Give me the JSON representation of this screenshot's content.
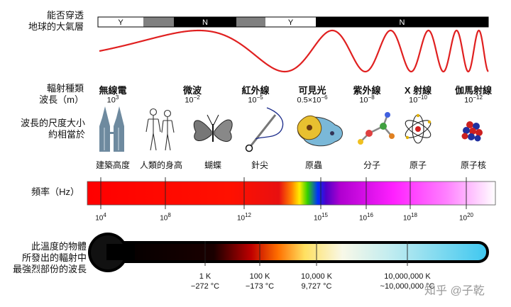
{
  "atmosphere": {
    "label": "能否穿透\n地球的大氣層",
    "segments": [
      {
        "text": "Y",
        "fill": "#ffffff",
        "color": "#000000"
      },
      {
        "text": "",
        "fill": "#808080",
        "color": "#000000"
      },
      {
        "text": "N",
        "fill": "#000000",
        "color": "#ffffff"
      },
      {
        "text": "",
        "fill": "#808080",
        "color": "#000000"
      },
      {
        "text": "Y",
        "fill": "#ffffff",
        "color": "#000000"
      },
      {
        "text": "N",
        "fill": "#000000",
        "color": "#ffffff"
      }
    ]
  },
  "labels": {
    "radiation": "輻射種類\n波長（m）",
    "scale": "波長的尺度大小\n約相當於",
    "frequency": "頻率（Hz）",
    "temperature": "此溫度的物體\n所發出的輻射中\n最強烈部份的波長"
  },
  "radiation_types": [
    {
      "name": "無線電",
      "wavelength": "10",
      "exp": "3"
    },
    {
      "name": "微波",
      "wavelength": "10",
      "exp": "−2"
    },
    {
      "name": "紅外線",
      "wavelength": "10",
      "exp": "−5"
    },
    {
      "name": "可見光",
      "wavelength": "0.5×10",
      "exp": "−6"
    },
    {
      "name": "紫外線",
      "wavelength": "10",
      "exp": "−8"
    },
    {
      "name": "X 射線",
      "wavelength": "10",
      "exp": "−10"
    },
    {
      "name": "伽馬射線",
      "wavelength": "10",
      "exp": "−12"
    }
  ],
  "scale_objects": [
    "建築高度",
    "人類的身高",
    "蝴蝶",
    "針尖",
    "原蟲",
    "分子",
    "原子",
    "原子核"
  ],
  "scale_icons": [
    "buildings-icon",
    "humans-icon",
    "butterfly-icon",
    "needle-icon",
    "protozoa-icon",
    "molecule-icon",
    "atom-icon",
    "nucleus-icon"
  ],
  "frequency_ticks": [
    {
      "base": "10",
      "exp": "4"
    },
    {
      "base": "10",
      "exp": "8"
    },
    {
      "base": "10",
      "exp": "12"
    },
    {
      "base": "10",
      "exp": "15"
    },
    {
      "base": "10",
      "exp": "16"
    },
    {
      "base": "10",
      "exp": "18"
    },
    {
      "base": "10",
      "exp": "20"
    }
  ],
  "temperature_ticks": [
    {
      "kelvin": "1 K",
      "celsius": "−272 °C"
    },
    {
      "kelvin": "100 K",
      "celsius": "−173 °C"
    },
    {
      "kelvin": "10,000 K",
      "celsius": "9,727 °C"
    },
    {
      "kelvin": "10,000,000 K",
      "celsius": "~10,000,000 °C"
    }
  ],
  "watermark": "知乎 @子乾",
  "colors": {
    "wave": "#e02020",
    "thermometer_fill": "#111111"
  }
}
